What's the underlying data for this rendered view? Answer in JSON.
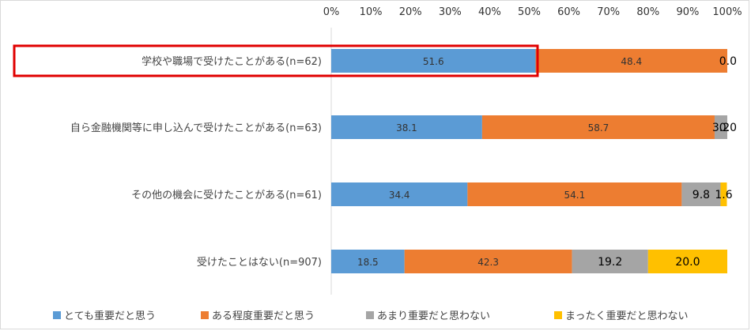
{
  "chart_data": {
    "type": "bar",
    "orientation": "horizontal",
    "stacked": true,
    "xlim": [
      0,
      100
    ],
    "x_ticks": [
      "0%",
      "10%",
      "20%",
      "30%",
      "40%",
      "50%",
      "60%",
      "70%",
      "80%",
      "90%",
      "100%"
    ],
    "categories": [
      "学校や職場で受けたことがある(n=62)",
      "自ら金融機関等に申し込んで受けたことがある(n=63)",
      "その他の機会に受けたことがある(n=61)",
      "受けたことはない(n=907)"
    ],
    "series": [
      {
        "name": "とても重要だと思う",
        "color": "#5b9bd5",
        "values": [
          51.6,
          38.1,
          34.4,
          18.5
        ],
        "labels": [
          "51.6",
          "38.1",
          "34.4",
          "18.5"
        ]
      },
      {
        "name": "ある程度重要だと思う",
        "color": "#ed7d31",
        "values": [
          48.4,
          58.7,
          54.1,
          42.3
        ],
        "labels": [
          "48.4",
          "58.7",
          "54.1",
          "42.3"
        ]
      },
      {
        "name": "あまり重要だと思わない",
        "color": "#a5a5a5",
        "values": [
          0.0,
          3.2,
          9.8,
          19.2
        ],
        "labels": [
          "",
          "3.2",
          "9.8",
          "19.2"
        ]
      },
      {
        "name": "まったく重要だと思わない",
        "color": "#ffc000",
        "values": [
          0.0,
          0.0,
          1.6,
          20.0
        ],
        "labels": [
          "0.0",
          "0.0",
          "1.6",
          "20.0"
        ]
      }
    ],
    "highlight_category_index": 0,
    "highlight_color": "#e00000",
    "grid": false,
    "legend_position": "bottom"
  }
}
